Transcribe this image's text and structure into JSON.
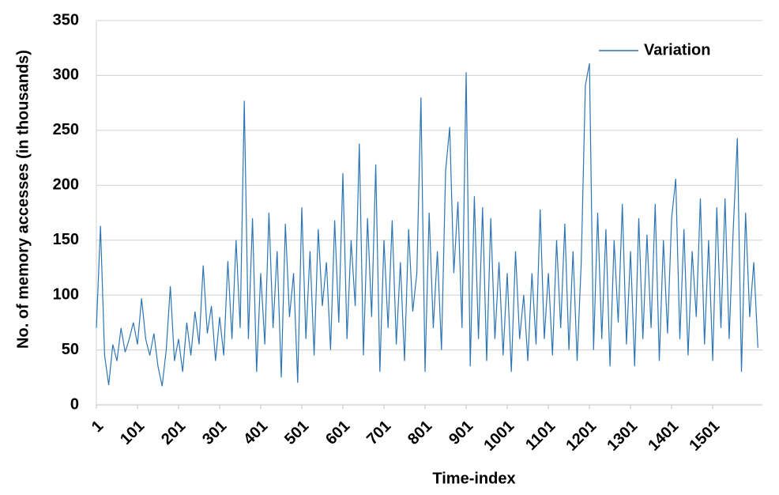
{
  "chart_data": {
    "type": "line",
    "x_label": "Time-index",
    "y_label": "No. of memory accesses (in thousands)",
    "x": [
      1,
      11,
      21,
      31,
      41,
      51,
      61,
      71,
      81,
      91,
      101,
      111,
      121,
      131,
      141,
      151,
      161,
      171,
      181,
      191,
      201,
      211,
      221,
      231,
      241,
      251,
      261,
      271,
      281,
      291,
      301,
      311,
      321,
      331,
      341,
      351,
      361,
      371,
      381,
      391,
      401,
      411,
      421,
      431,
      441,
      451,
      461,
      471,
      481,
      491,
      501,
      511,
      521,
      531,
      541,
      551,
      561,
      571,
      581,
      591,
      601,
      611,
      621,
      631,
      641,
      651,
      661,
      671,
      681,
      691,
      701,
      711,
      721,
      731,
      741,
      751,
      761,
      771,
      781,
      791,
      801,
      811,
      821,
      831,
      841,
      851,
      861,
      871,
      881,
      891,
      901,
      911,
      921,
      931,
      941,
      951,
      961,
      971,
      981,
      991,
      1001,
      1011,
      1021,
      1031,
      1041,
      1051,
      1061,
      1071,
      1081,
      1091,
      1101,
      1111,
      1121,
      1131,
      1141,
      1151,
      1161,
      1171,
      1181,
      1191,
      1201,
      1211,
      1221,
      1231,
      1241,
      1251,
      1261,
      1271,
      1281,
      1291,
      1301,
      1311,
      1321,
      1331,
      1341,
      1351,
      1361,
      1371,
      1381,
      1391,
      1401,
      1411,
      1421,
      1431,
      1441,
      1451,
      1461,
      1471,
      1481,
      1491,
      1501,
      1511,
      1521,
      1531,
      1541,
      1551,
      1561,
      1571,
      1581,
      1591,
      1601,
      1611
    ],
    "series": [
      {
        "name": "Variation",
        "color": "#2e75b6",
        "values": [
          70,
          163,
          45,
          18,
          55,
          40,
          70,
          48,
          60,
          75,
          55,
          97,
          60,
          45,
          65,
          35,
          17,
          50,
          108,
          40,
          60,
          30,
          75,
          45,
          85,
          55,
          127,
          65,
          90,
          40,
          80,
          45,
          131,
          60,
          150,
          70,
          277,
          60,
          170,
          30,
          120,
          55,
          175,
          70,
          140,
          25,
          165,
          80,
          120,
          20,
          180,
          60,
          140,
          45,
          160,
          90,
          130,
          50,
          168,
          75,
          211,
          60,
          150,
          90,
          238,
          45,
          170,
          80,
          219,
          30,
          150,
          70,
          168,
          55,
          130,
          40,
          160,
          85,
          120,
          280,
          30,
          175,
          70,
          140,
          50,
          213,
          253,
          120,
          185,
          70,
          303,
          35,
          190,
          60,
          180,
          40,
          170,
          60,
          130,
          45,
          120,
          30,
          140,
          60,
          100,
          40,
          120,
          55,
          178,
          60,
          120,
          45,
          150,
          70,
          165,
          50,
          140,
          40,
          130,
          291,
          311,
          50,
          175,
          60,
          160,
          35,
          150,
          75,
          183,
          55,
          140,
          35,
          170,
          60,
          155,
          70,
          183,
          40,
          150,
          65,
          170,
          206,
          60,
          160,
          45,
          140,
          80,
          188,
          55,
          150,
          40,
          180,
          70,
          188,
          60,
          160,
          243,
          30,
          175,
          80,
          130,
          52
        ]
      }
    ],
    "xlim": [
      1,
      1622
    ],
    "xticks": [
      1,
      101,
      201,
      301,
      401,
      501,
      601,
      701,
      801,
      901,
      1001,
      1101,
      1201,
      1301,
      1401,
      1501
    ],
    "ylim": [
      0,
      350
    ],
    "yticks": [
      0,
      50,
      100,
      150,
      200,
      250,
      300,
      350
    ],
    "grid": true,
    "legend": "upper right"
  }
}
